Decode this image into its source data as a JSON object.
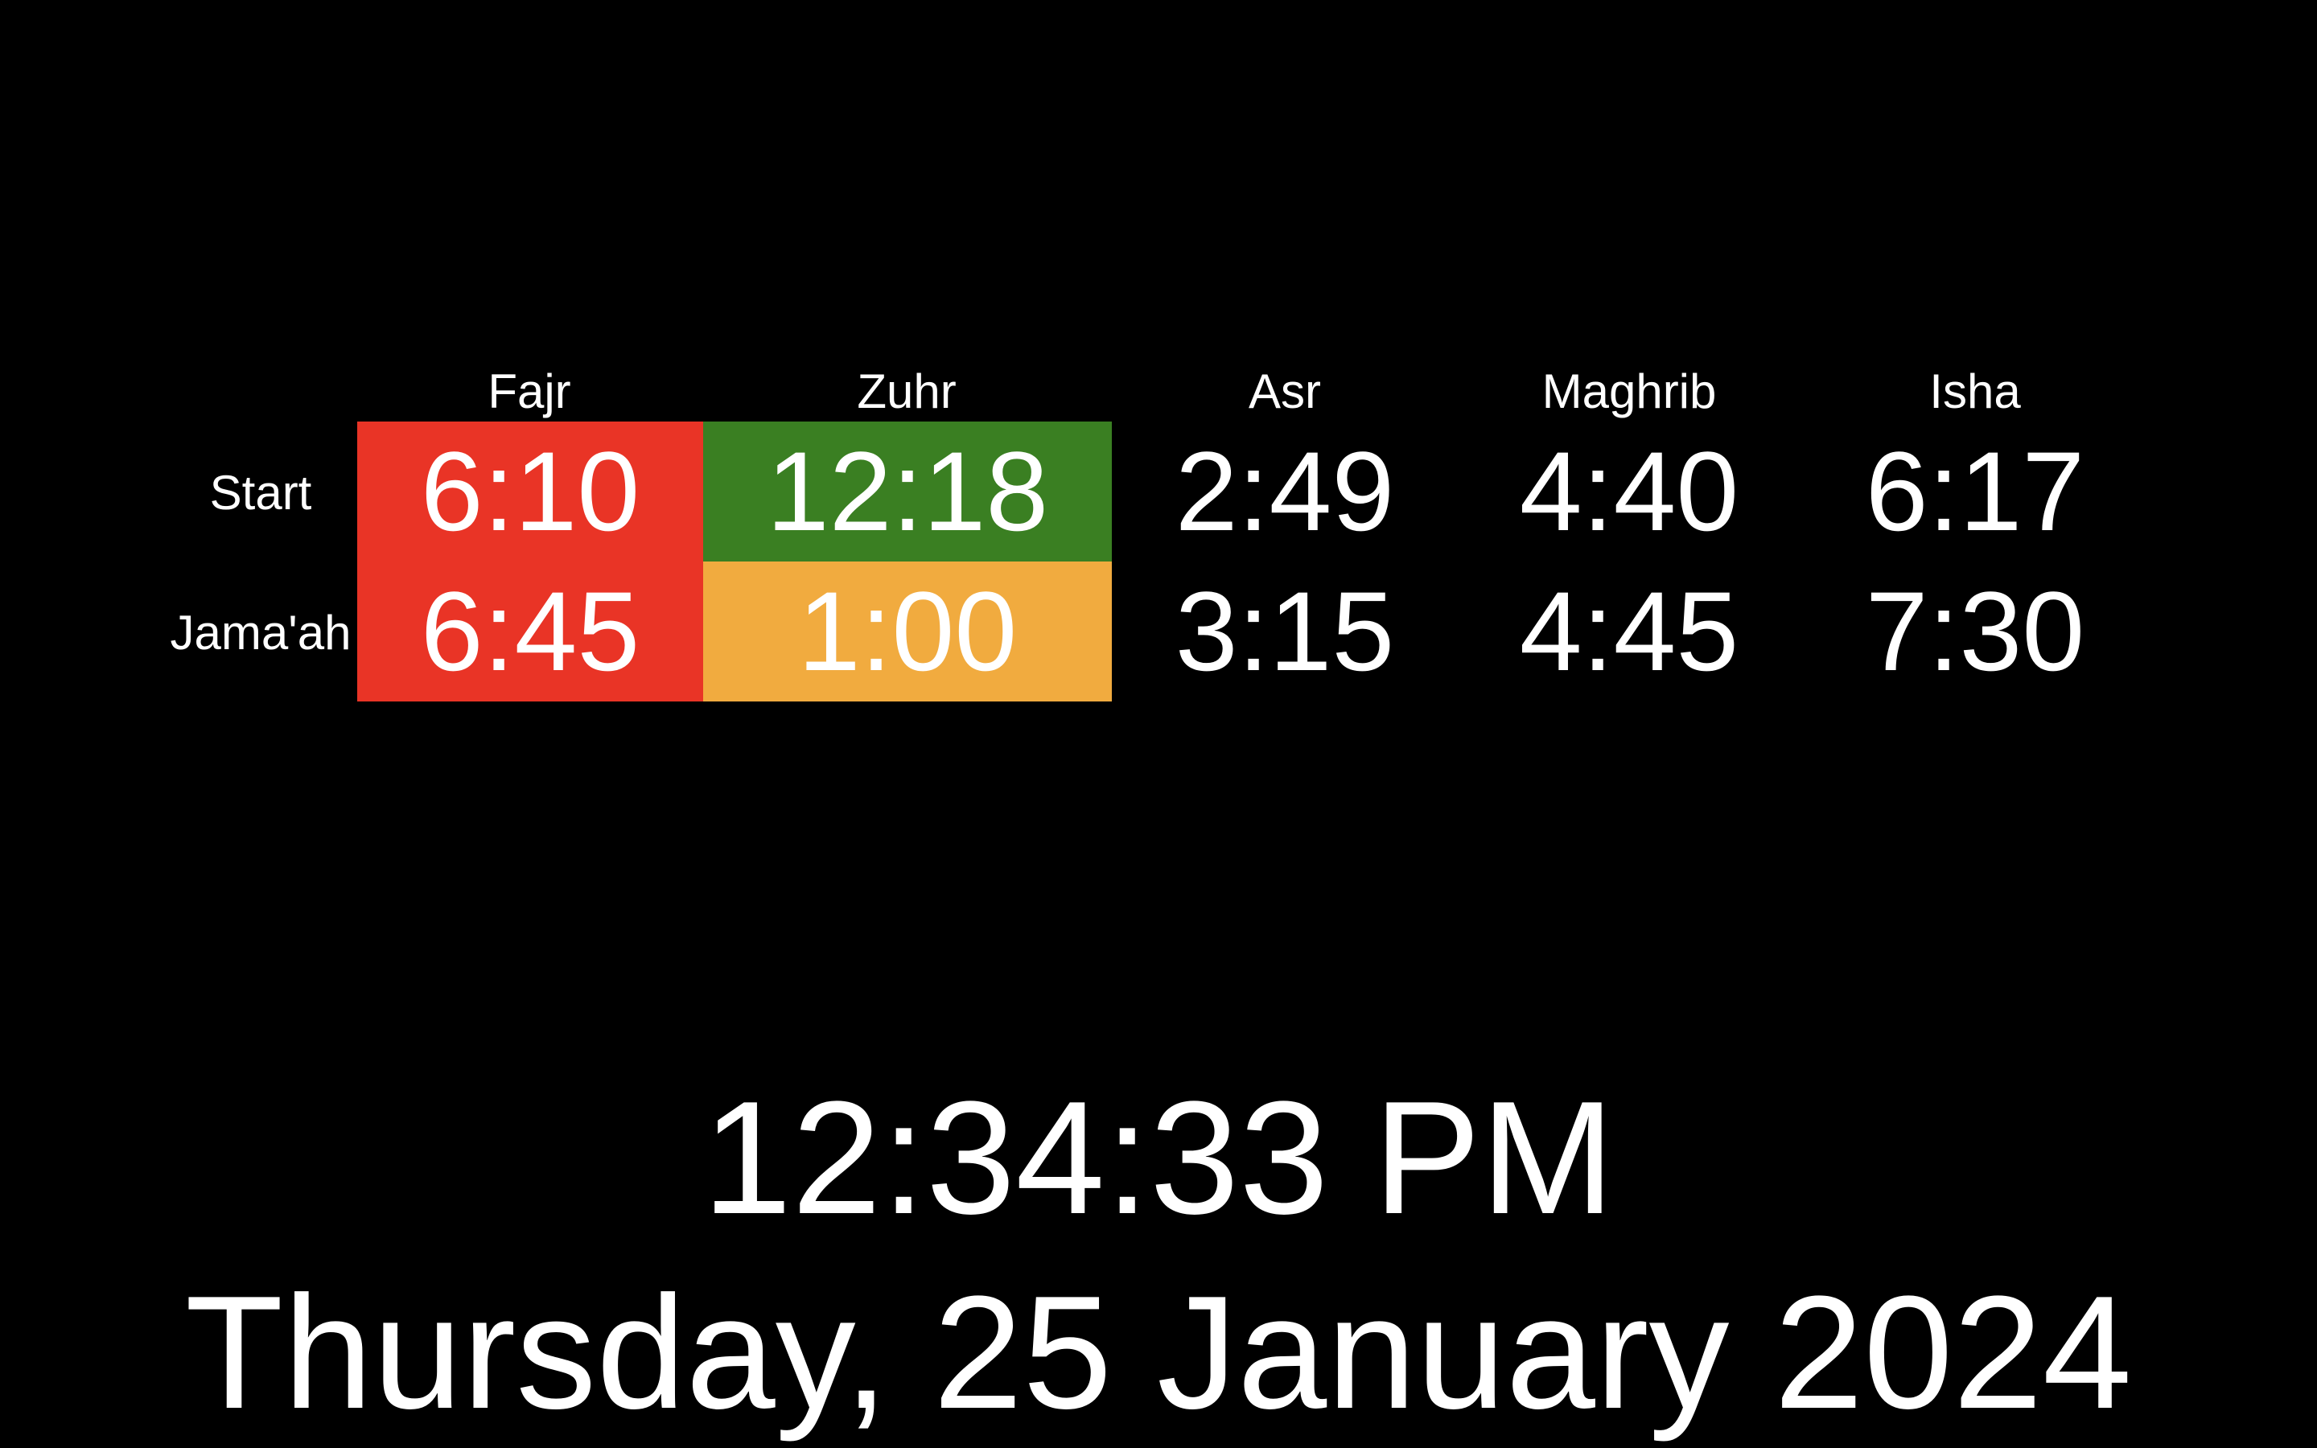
{
  "table": {
    "prayers": [
      "Fajr",
      "Zuhr",
      "Asr",
      "Maghrib",
      "Isha"
    ],
    "row_labels": [
      "Start",
      "Jama'ah"
    ],
    "start_times": [
      "6:10",
      "12:18",
      "2:49",
      "4:40",
      "6:17"
    ],
    "jamaah_times": [
      "6:45",
      "1:00",
      "3:15",
      "4:45",
      "7:30"
    ]
  },
  "colors": {
    "background": "#000000",
    "text": "#ffffff",
    "past_prayer": "#e93426",
    "current_start": "#3a7f22",
    "current_jamaah": "#f1ab3f"
  },
  "clock": {
    "time": "12:34:33 PM",
    "date": "Thursday, 25 January 2024"
  }
}
